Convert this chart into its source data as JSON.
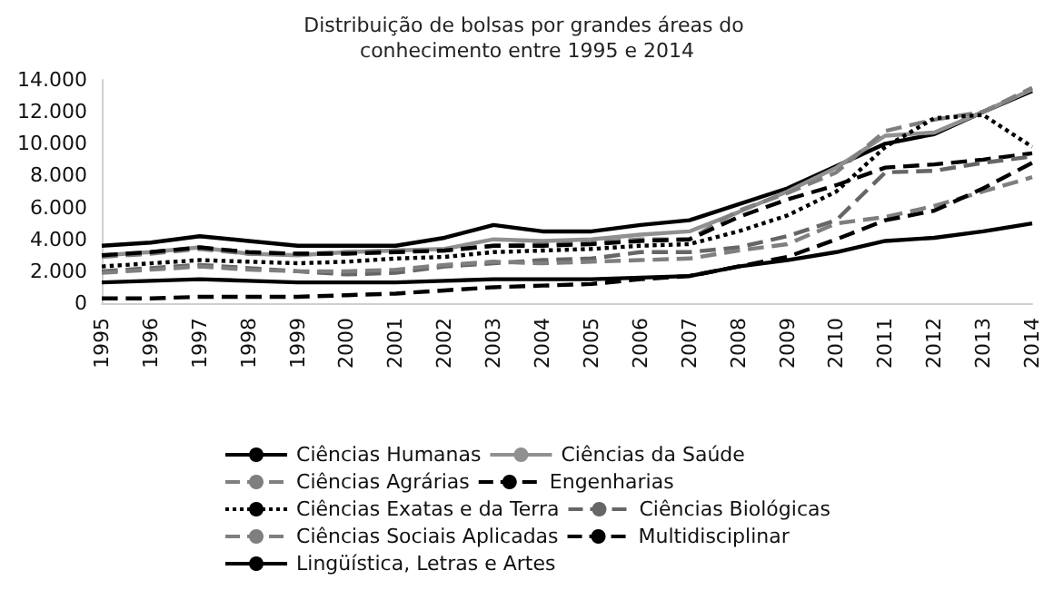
{
  "chart_data": {
    "type": "line",
    "title": "Distribuição de bolsas por grandes áreas do conhecimento entre 1995 e 2014",
    "categories": [
      "1995",
      "1996",
      "1997",
      "1998",
      "1999",
      "2000",
      "2001",
      "2002",
      "2003",
      "2004",
      "2005",
      "2006",
      "2007",
      "2008",
      "2009",
      "2010",
      "2011",
      "2012",
      "2013",
      "2014"
    ],
    "ylim": [
      0,
      14000
    ],
    "yticks": [
      {
        "value": 0,
        "label": "0"
      },
      {
        "value": 2000,
        "label": "2.000"
      },
      {
        "value": 4000,
        "label": "4.000"
      },
      {
        "value": 6000,
        "label": "6.000"
      },
      {
        "value": 8000,
        "label": "8.000"
      },
      {
        "value": 10000,
        "label": "10.000"
      },
      {
        "value": 12000,
        "label": "12.000"
      },
      {
        "value": 14000,
        "label": "14.000"
      }
    ],
    "grid": false,
    "legend": "bottom",
    "marker": "none",
    "series": [
      {
        "name": "Ciências Humanas",
        "color": "#000000",
        "line_style": "solid",
        "values": [
          3600,
          3800,
          4200,
          3900,
          3600,
          3600,
          3600,
          4100,
          4900,
          4500,
          4500,
          4900,
          5200,
          6200,
          7200,
          8600,
          10000,
          10600,
          12000,
          13300
        ]
      },
      {
        "name": "Ciências da Saúde",
        "color": "#909090",
        "line_style": "solid",
        "values": [
          3000,
          3200,
          3500,
          3100,
          3000,
          3200,
          3300,
          3400,
          4000,
          3900,
          4000,
          4300,
          4500,
          5700,
          7000,
          8500,
          10500,
          10700,
          12000,
          13400
        ]
      },
      {
        "name": "Ciências Agrárias",
        "color": "#7f7f7f",
        "line_style": "dashed",
        "values": [
          2900,
          3100,
          3400,
          3100,
          3100,
          3200,
          3300,
          3300,
          3600,
          3700,
          3800,
          4000,
          4000,
          5800,
          6900,
          8200,
          10800,
          11500,
          12000,
          13500
        ]
      },
      {
        "name": "Engenharias",
        "color": "#000000",
        "line_style": "dashed",
        "values": [
          3000,
          3200,
          3500,
          3200,
          3100,
          3100,
          3200,
          3300,
          3600,
          3600,
          3700,
          3900,
          4000,
          5400,
          6500,
          7400,
          8500,
          8700,
          9000,
          9400
        ]
      },
      {
        "name": "Ciências Exatas e da Terra",
        "color": "#000000",
        "line_style": "dotted",
        "values": [
          2300,
          2500,
          2700,
          2600,
          2500,
          2600,
          2800,
          2900,
          3200,
          3300,
          3400,
          3600,
          3700,
          4500,
          5500,
          7000,
          9800,
          11600,
          11800,
          9800
        ]
      },
      {
        "name": "Ciências Biológicas",
        "color": "#666666",
        "line_style": "dashed",
        "values": [
          2000,
          2200,
          2400,
          2200,
          2000,
          1800,
          1900,
          2300,
          2500,
          2700,
          2800,
          3200,
          3200,
          3500,
          4200,
          5200,
          8200,
          8300,
          8800,
          9200
        ]
      },
      {
        "name": "Ciências Sociais Aplicadas",
        "color": "#7f7f7f",
        "line_style": "dashed",
        "values": [
          1900,
          2100,
          2300,
          2100,
          2000,
          2000,
          2100,
          2400,
          2600,
          2500,
          2600,
          2700,
          2800,
          3300,
          3700,
          5000,
          5400,
          6100,
          7000,
          7900
        ]
      },
      {
        "name": "Multidisciplinar",
        "color": "#000000",
        "line_style": "dashed",
        "values": [
          300,
          300,
          400,
          400,
          400,
          500,
          600,
          800,
          1000,
          1100,
          1200,
          1500,
          1700,
          2300,
          2900,
          4000,
          5200,
          5800,
          7200,
          8800
        ]
      },
      {
        "name": "Lingüística, Letras e Artes",
        "color": "#000000",
        "line_style": "solid",
        "values": [
          1300,
          1400,
          1500,
          1400,
          1300,
          1300,
          1300,
          1400,
          1500,
          1500,
          1500,
          1600,
          1700,
          2300,
          2700,
          3200,
          3900,
          4100,
          4500,
          5000
        ]
      }
    ]
  }
}
